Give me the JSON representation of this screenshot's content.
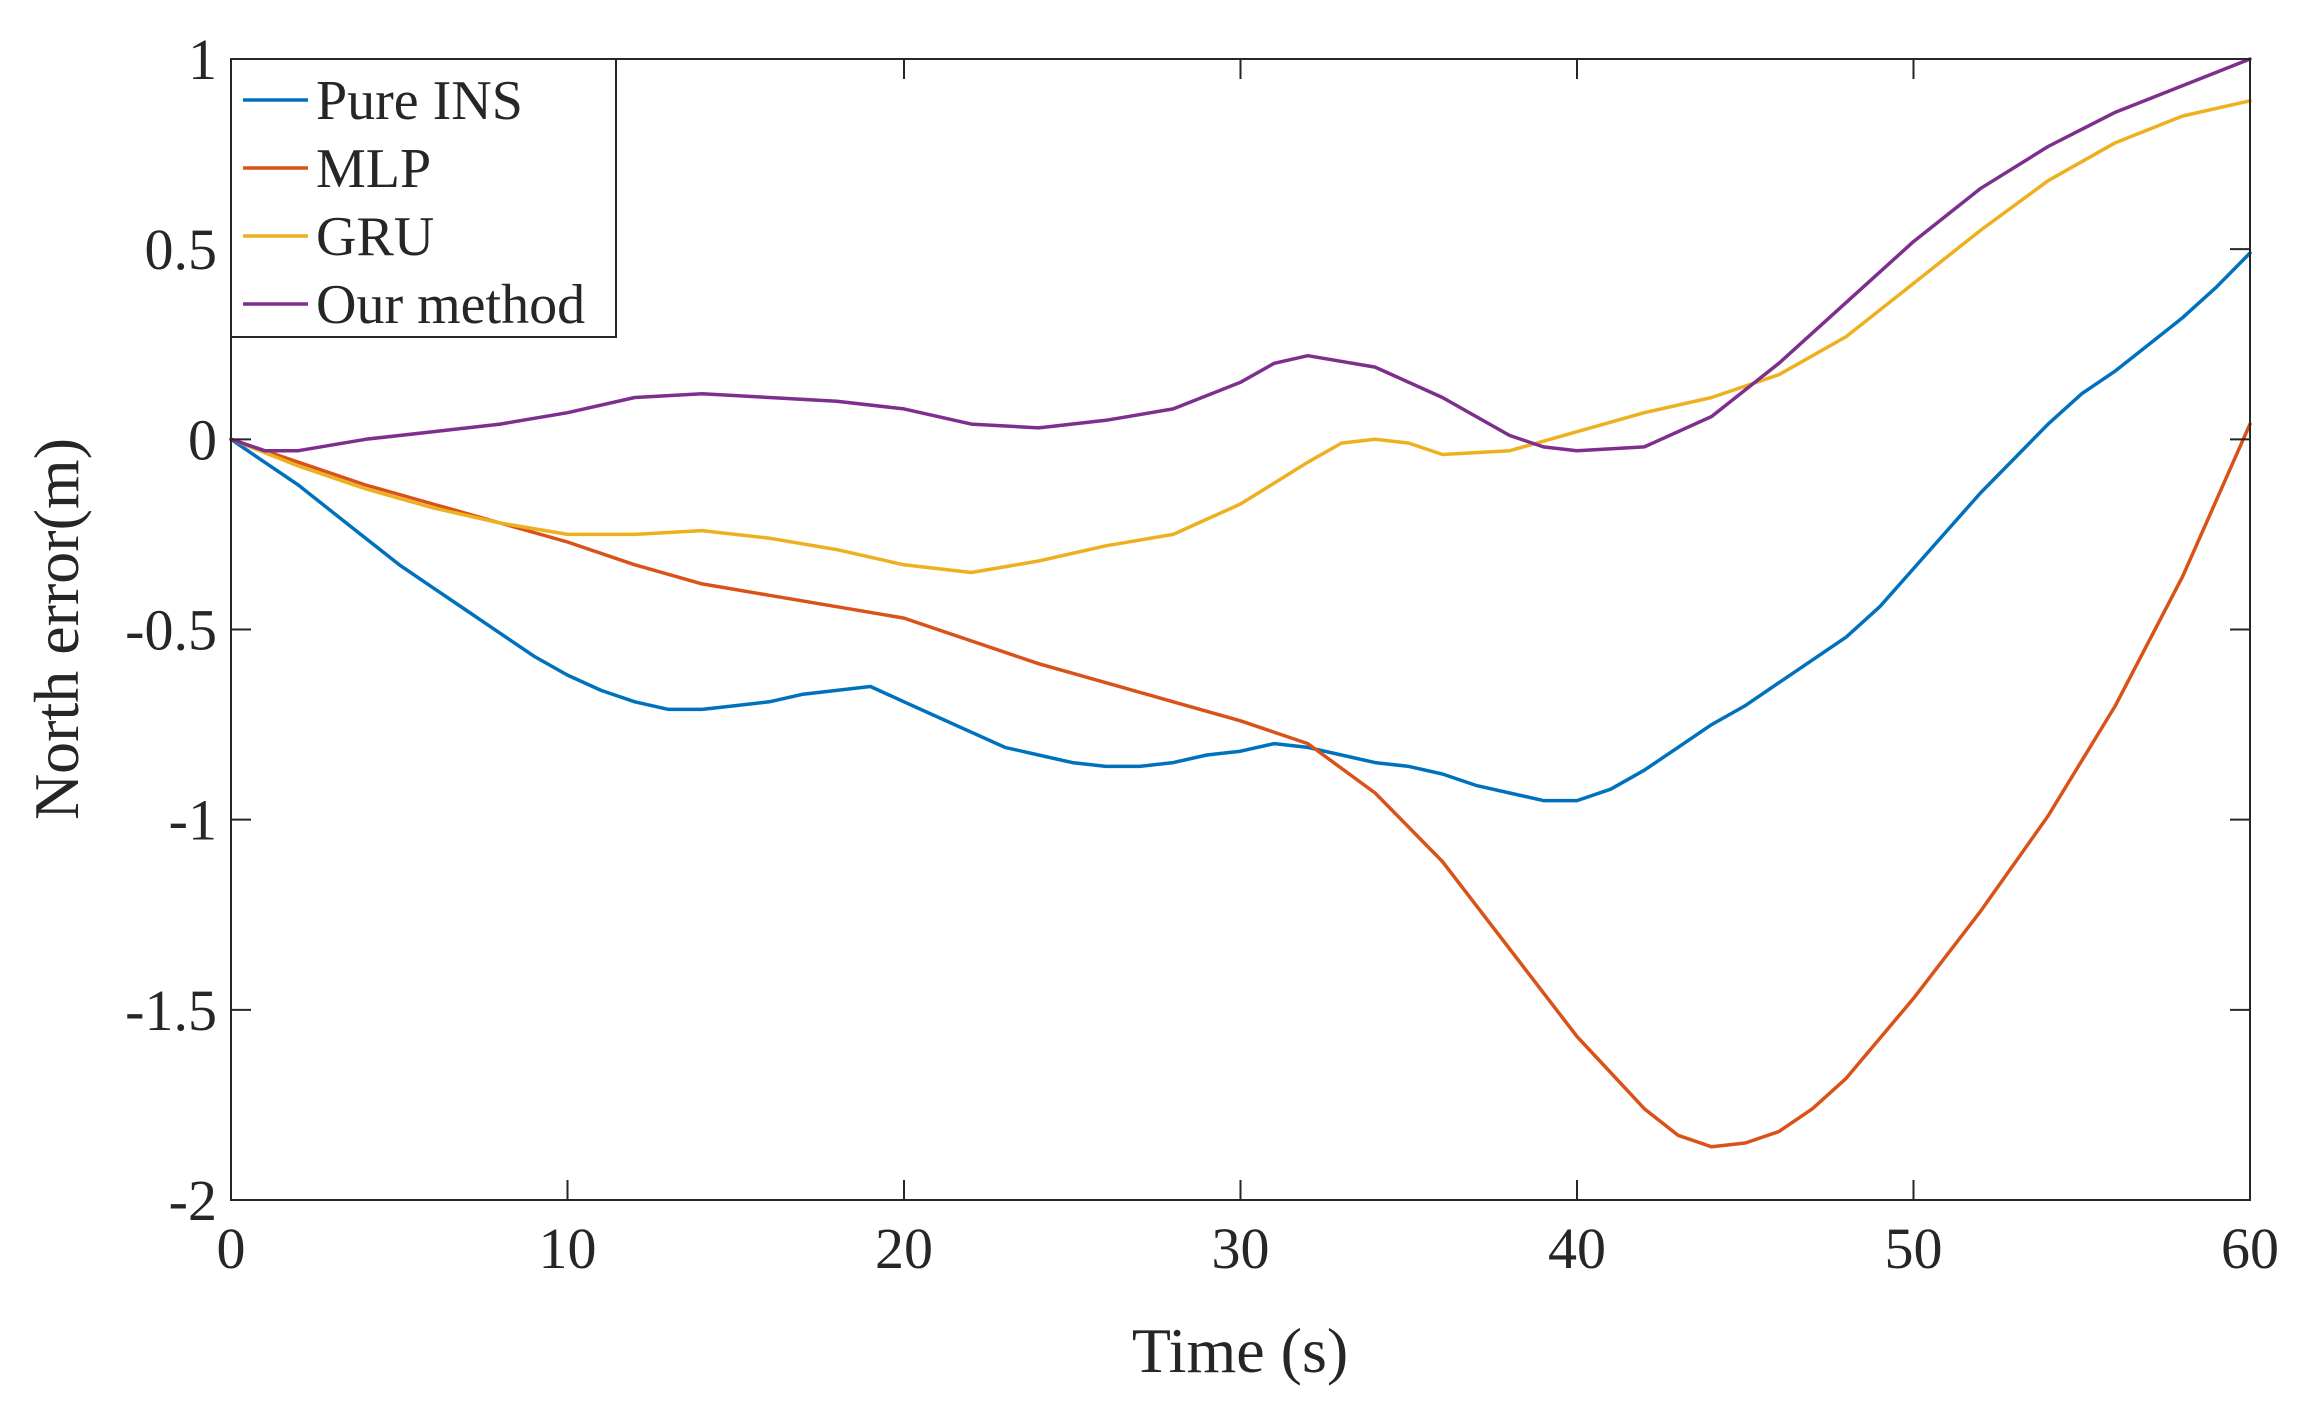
{
  "chart_data": {
    "type": "line",
    "title": "",
    "xlabel": "Time (s)",
    "ylabel": "North error(m)",
    "xlim": [
      0,
      60
    ],
    "ylim": [
      -2,
      1
    ],
    "xticks": [
      0,
      10,
      20,
      30,
      40,
      50,
      60
    ],
    "yticks": [
      -2,
      -1.5,
      -1,
      -0.5,
      0,
      0.5,
      1
    ],
    "xtick_labels": [
      "0",
      "10",
      "20",
      "30",
      "40",
      "50",
      "60"
    ],
    "ytick_labels": [
      "-2",
      "-1.5",
      "-1",
      "-0.5",
      "0",
      "0.5",
      "1"
    ],
    "grid": false,
    "legend_position": "top-left",
    "series": [
      {
        "name": "Pure INS",
        "color": "#0072BD",
        "points": [
          [
            0,
            0
          ],
          [
            1,
            -0.06
          ],
          [
            2,
            -0.12
          ],
          [
            3,
            -0.19
          ],
          [
            4,
            -0.26
          ],
          [
            5,
            -0.33
          ],
          [
            6,
            -0.39
          ],
          [
            7,
            -0.45
          ],
          [
            8,
            -0.51
          ],
          [
            9,
            -0.57
          ],
          [
            10,
            -0.62
          ],
          [
            11,
            -0.66
          ],
          [
            12,
            -0.69
          ],
          [
            13,
            -0.71
          ],
          [
            14,
            -0.71
          ],
          [
            15,
            -0.7
          ],
          [
            16,
            -0.69
          ],
          [
            17,
            -0.67
          ],
          [
            18,
            -0.66
          ],
          [
            19,
            -0.65
          ],
          [
            20,
            -0.69
          ],
          [
            21,
            -0.73
          ],
          [
            22,
            -0.77
          ],
          [
            23,
            -0.81
          ],
          [
            24,
            -0.83
          ],
          [
            25,
            -0.85
          ],
          [
            26,
            -0.86
          ],
          [
            27,
            -0.86
          ],
          [
            28,
            -0.85
          ],
          [
            29,
            -0.83
          ],
          [
            30,
            -0.82
          ],
          [
            31,
            -0.8
          ],
          [
            32,
            -0.81
          ],
          [
            33,
            -0.83
          ],
          [
            34,
            -0.85
          ],
          [
            35,
            -0.86
          ],
          [
            36,
            -0.88
          ],
          [
            37,
            -0.91
          ],
          [
            38,
            -0.93
          ],
          [
            39,
            -0.95
          ],
          [
            40,
            -0.95
          ],
          [
            41,
            -0.92
          ],
          [
            42,
            -0.87
          ],
          [
            43,
            -0.81
          ],
          [
            44,
            -0.75
          ],
          [
            45,
            -0.7
          ],
          [
            46,
            -0.64
          ],
          [
            47,
            -0.58
          ],
          [
            48,
            -0.52
          ],
          [
            49,
            -0.44
          ],
          [
            50,
            -0.34
          ],
          [
            51,
            -0.24
          ],
          [
            52,
            -0.14
          ],
          [
            53,
            -0.05
          ],
          [
            54,
            0.04
          ],
          [
            55,
            0.12
          ],
          [
            56,
            0.18
          ],
          [
            57,
            0.25
          ],
          [
            58,
            0.32
          ],
          [
            59,
            0.4
          ],
          [
            60,
            0.49
          ]
        ]
      },
      {
        "name": "MLP",
        "color": "#D95319",
        "points": [
          [
            0,
            0
          ],
          [
            2,
            -0.06
          ],
          [
            4,
            -0.12
          ],
          [
            6,
            -0.17
          ],
          [
            8,
            -0.22
          ],
          [
            10,
            -0.27
          ],
          [
            12,
            -0.33
          ],
          [
            14,
            -0.38
          ],
          [
            16,
            -0.41
          ],
          [
            18,
            -0.44
          ],
          [
            20,
            -0.47
          ],
          [
            22,
            -0.53
          ],
          [
            24,
            -0.59
          ],
          [
            26,
            -0.64
          ],
          [
            28,
            -0.69
          ],
          [
            30,
            -0.74
          ],
          [
            32,
            -0.8
          ],
          [
            34,
            -0.93
          ],
          [
            36,
            -1.11
          ],
          [
            38,
            -1.34
          ],
          [
            40,
            -1.57
          ],
          [
            42,
            -1.76
          ],
          [
            43,
            -1.83
          ],
          [
            44,
            -1.86
          ],
          [
            45,
            -1.85
          ],
          [
            46,
            -1.82
          ],
          [
            47,
            -1.76
          ],
          [
            48,
            -1.68
          ],
          [
            50,
            -1.47
          ],
          [
            52,
            -1.24
          ],
          [
            54,
            -0.99
          ],
          [
            56,
            -0.7
          ],
          [
            58,
            -0.36
          ],
          [
            60,
            0.04
          ]
        ]
      },
      {
        "name": "GRU",
        "color": "#EDB120",
        "points": [
          [
            0,
            0
          ],
          [
            2,
            -0.07
          ],
          [
            4,
            -0.13
          ],
          [
            6,
            -0.18
          ],
          [
            8,
            -0.22
          ],
          [
            10,
            -0.25
          ],
          [
            12,
            -0.25
          ],
          [
            14,
            -0.24
          ],
          [
            16,
            -0.26
          ],
          [
            18,
            -0.29
          ],
          [
            20,
            -0.33
          ],
          [
            22,
            -0.35
          ],
          [
            24,
            -0.32
          ],
          [
            26,
            -0.28
          ],
          [
            28,
            -0.25
          ],
          [
            30,
            -0.17
          ],
          [
            32,
            -0.06
          ],
          [
            33,
            -0.01
          ],
          [
            34,
            0
          ],
          [
            35,
            -0.01
          ],
          [
            36,
            -0.04
          ],
          [
            38,
            -0.03
          ],
          [
            40,
            0.02
          ],
          [
            42,
            0.07
          ],
          [
            44,
            0.11
          ],
          [
            46,
            0.17
          ],
          [
            48,
            0.27
          ],
          [
            50,
            0.41
          ],
          [
            52,
            0.55
          ],
          [
            54,
            0.68
          ],
          [
            56,
            0.78
          ],
          [
            58,
            0.85
          ],
          [
            60,
            0.89
          ]
        ]
      },
      {
        "name": "Our method",
        "color": "#7E2F8E",
        "points": [
          [
            0,
            0
          ],
          [
            1,
            -0.03
          ],
          [
            2,
            -0.03
          ],
          [
            4,
            0
          ],
          [
            6,
            0.02
          ],
          [
            8,
            0.04
          ],
          [
            10,
            0.07
          ],
          [
            12,
            0.11
          ],
          [
            14,
            0.12
          ],
          [
            16,
            0.11
          ],
          [
            18,
            0.1
          ],
          [
            20,
            0.08
          ],
          [
            22,
            0.04
          ],
          [
            24,
            0.03
          ],
          [
            26,
            0.05
          ],
          [
            28,
            0.08
          ],
          [
            30,
            0.15
          ],
          [
            31,
            0.2
          ],
          [
            32,
            0.22
          ],
          [
            34,
            0.19
          ],
          [
            36,
            0.11
          ],
          [
            38,
            0.01
          ],
          [
            39,
            -0.02
          ],
          [
            40,
            -0.03
          ],
          [
            42,
            -0.02
          ],
          [
            44,
            0.06
          ],
          [
            46,
            0.2
          ],
          [
            48,
            0.36
          ],
          [
            50,
            0.52
          ],
          [
            52,
            0.66
          ],
          [
            54,
            0.77
          ],
          [
            56,
            0.86
          ],
          [
            58,
            0.93
          ],
          [
            60,
            1
          ]
        ]
      }
    ]
  }
}
